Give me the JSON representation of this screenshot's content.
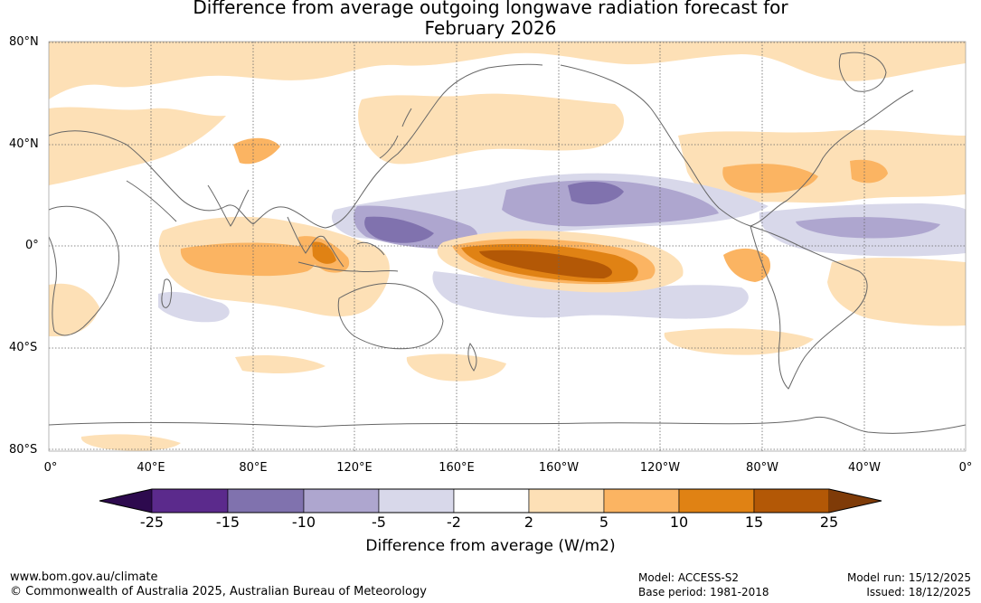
{
  "title_line1": "Difference from average outgoing longwave radiation forecast for",
  "title_line2": "February 2026",
  "lat_labels": [
    "80°N",
    "40°N",
    "0°",
    "40°S",
    "80°S"
  ],
  "lon_labels": [
    "0°",
    "40°E",
    "80°E",
    "120°E",
    "160°E",
    "160°W",
    "120°W",
    "80°W",
    "40°W",
    "0°"
  ],
  "colorbar": {
    "ticks": [
      "-25",
      "-15",
      "-10",
      "-5",
      "-2",
      "2",
      "5",
      "10",
      "15",
      "25"
    ],
    "colors": [
      "#2d0a4e",
      "#5b2a8c",
      "#8072ae",
      "#aea6cf",
      "#d8d8ea",
      "#ffffff",
      "#fde0b6",
      "#fbb462",
      "#e08214",
      "#b35806",
      "#7f3b08"
    ],
    "label": "Difference from average (W/m2)"
  },
  "footer": {
    "website": "www.bom.gov.au/climate",
    "copyright": "© Commonwealth of Australia 2025, Australian Bureau of Meteorology",
    "model": "Model: ACCESS-S2",
    "base_period": "Base period: 1981-2018",
    "model_run": "Model run: 15/12/2025",
    "issued": "Issued: 18/12/2025"
  }
}
